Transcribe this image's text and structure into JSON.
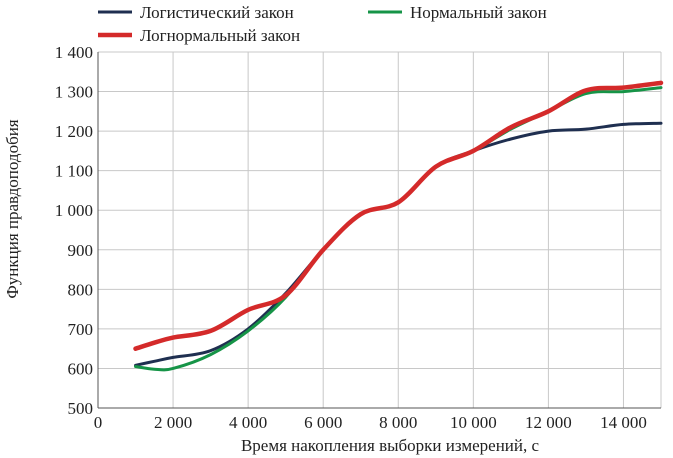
{
  "chart_data": {
    "type": "line",
    "title": "",
    "xlabel": "Время накопления выборки измерений, с",
    "ylabel": "Функция правдоподобия",
    "xlim": [
      0,
      15000
    ],
    "ylim": [
      500,
      1400
    ],
    "x_ticks": [
      0,
      2000,
      4000,
      6000,
      8000,
      10000,
      12000,
      14000
    ],
    "x_tick_labels": [
      "0",
      "2 000",
      "4 000",
      "6 000",
      "8 000",
      "10 000",
      "12 000",
      "14 000"
    ],
    "y_ticks": [
      500,
      600,
      700,
      800,
      900,
      1000,
      1100,
      1200,
      1300,
      1400
    ],
    "y_tick_labels": [
      "500",
      "600",
      "700",
      "800",
      "900",
      "1 000",
      "1 100",
      "1 200",
      "1 300",
      "1 400"
    ],
    "grid": true,
    "legend_position": "top",
    "x": [
      1000,
      1500,
      2000,
      3000,
      4000,
      5000,
      6000,
      7000,
      8000,
      9000,
      10000,
      11000,
      12000,
      13000,
      14000,
      15000
    ],
    "series": [
      {
        "name": "Логистический закон",
        "color": "#1f2f50",
        "values": [
          608,
          618,
          628,
          645,
          700,
          790,
          900,
          990,
          1020,
          1110,
          1150,
          1180,
          1200,
          1205,
          1217,
          1220
        ]
      },
      {
        "name": "Нормальный закон",
        "color": "#169447",
        "values": [
          605,
          598,
          600,
          635,
          695,
          780,
          900,
          990,
          1020,
          1110,
          1150,
          1205,
          1250,
          1295,
          1300,
          1310
        ]
      },
      {
        "name": "Логнормальный закон",
        "color": "#d42a2a",
        "values": [
          650,
          665,
          678,
          695,
          748,
          785,
          900,
          990,
          1020,
          1110,
          1150,
          1210,
          1250,
          1303,
          1310,
          1322
        ]
      }
    ]
  }
}
